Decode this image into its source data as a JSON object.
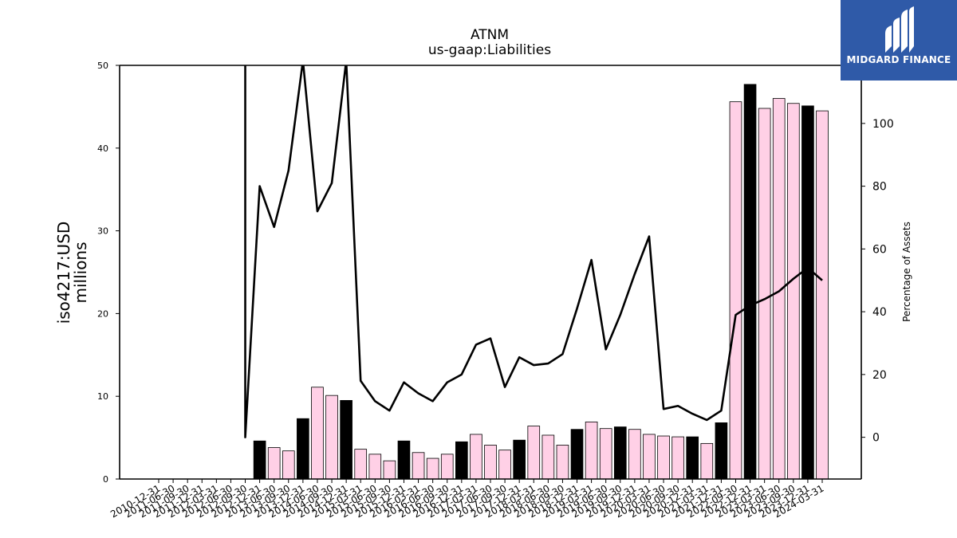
{
  "chart_data": {
    "type": "bar",
    "title": "ATNM",
    "subtitle": "us-gaap:Liabilities",
    "ylabel_left": "iso4217:USD\nmillions",
    "ylabel_right": "Percentage of Assets",
    "ylim_left": [
      0,
      50
    ],
    "yticks_left": [
      0,
      10,
      20,
      30,
      40,
      50
    ],
    "ylim_right": [
      -13.3,
      118.5
    ],
    "yticks_right": [
      0,
      20,
      40,
      60,
      80,
      100
    ],
    "grid": false,
    "categories": [
      "2010-12-31",
      "2011-06-30",
      "2011-09-30",
      "2011-12-31",
      "2012-03-31",
      "2012-06-30",
      "2012-09-30",
      "2012-12-31",
      "2013-06-30",
      "2013-09-30",
      "2013-12-31",
      "2014-06-30",
      "2014-09-30",
      "2014-12-31",
      "2015-03-31",
      "2015-06-30",
      "2015-09-30",
      "2015-12-31",
      "2016-03-31",
      "2016-06-30",
      "2016-09-30",
      "2016-12-31",
      "2017-03-31",
      "2017-06-30",
      "2017-09-30",
      "2017-12-31",
      "2018-03-31",
      "2018-06-30",
      "2018-09-30",
      "2018-12-31",
      "2019-03-31",
      "2019-06-30",
      "2019-09-30",
      "2019-12-31",
      "2020-03-31",
      "2020-06-30",
      "2020-09-30",
      "2020-12-31",
      "2021-03-31",
      "2021-12-31",
      "2022-09-30",
      "2022-12-31",
      "2023-03-31",
      "2023-06-30",
      "2023-09-30",
      "2023-12-31",
      "2024-03-31"
    ],
    "series": [
      {
        "kind": "bar",
        "values": [
          0,
          0,
          0,
          0,
          0,
          0,
          0,
          4.6,
          3.8,
          3.4,
          7.3,
          11.1,
          10.1,
          9.5,
          3.6,
          3.0,
          2.2,
          4.6,
          3.2,
          2.5,
          3.0,
          4.5,
          5.4,
          4.1,
          3.5,
          4.7,
          6.4,
          5.3,
          4.1,
          6.0,
          6.9,
          6.1,
          6.3,
          6.0,
          5.4,
          5.2,
          5.1,
          5.1,
          4.3,
          6.8,
          45.6,
          47.7,
          44.8,
          46.0,
          45.4,
          45.1,
          44.5
        ],
        "colors": [
          "#ffd0e6",
          "#ffd0e6",
          "#ffd0e6",
          "#ffd0e6",
          "#ffd0e6",
          "#ffd0e6",
          "#ffd0e6",
          "#000000",
          "#ffd0e6",
          "#ffd0e6",
          "#000000",
          "#ffd0e6",
          "#ffd0e6",
          "#000000",
          "#ffd0e6",
          "#ffd0e6",
          "#ffd0e6",
          "#000000",
          "#ffd0e6",
          "#ffd0e6",
          "#ffd0e6",
          "#000000",
          "#ffd0e6",
          "#ffd0e6",
          "#ffd0e6",
          "#000000",
          "#ffd0e6",
          "#ffd0e6",
          "#ffd0e6",
          "#000000",
          "#ffd0e6",
          "#ffd0e6",
          "#000000",
          "#ffd0e6",
          "#ffd0e6",
          "#ffd0e6",
          "#ffd0e6",
          "#000000",
          "#ffd0e6",
          "#000000",
          "#ffd0e6",
          "#000000",
          "#ffd0e6",
          "#ffd0e6",
          "#ffd0e6",
          "#000000",
          "#ffd0e6"
        ]
      },
      {
        "kind": "line",
        "axis": "right",
        "color": "#000000",
        "values": [
          null,
          null,
          null,
          null,
          null,
          null,
          0,
          80,
          67,
          85,
          120,
          72,
          81,
          120,
          18,
          11.5,
          8.5,
          17.5,
          14,
          11.5,
          17.5,
          20,
          29.5,
          31.5,
          16,
          25.5,
          23,
          23.5,
          26.5,
          41,
          56.5,
          28,
          39,
          52,
          64,
          9,
          10,
          7.5,
          5.5,
          8.5,
          39,
          42,
          44,
          46.5,
          50.5,
          54,
          50
        ]
      }
    ],
    "line_top_spike_category": "2012-09-30"
  },
  "logo": {
    "text": "MIDGARD FINANCE",
    "background": "#2f5aa8"
  }
}
